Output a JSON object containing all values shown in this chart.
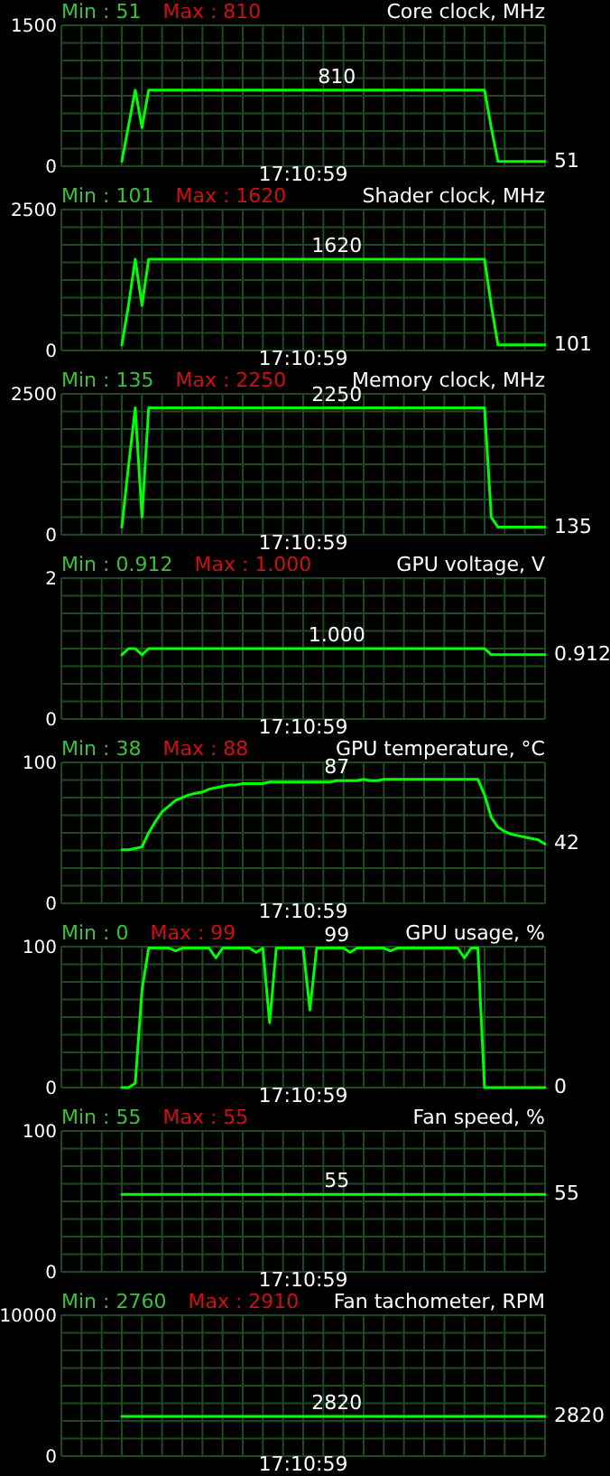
{
  "chart_data": [
    {
      "type": "line",
      "title": "Core clock, MHz",
      "xlabel": "17:10:59",
      "annotations": [
        "Min : 51",
        "Max : 810"
      ],
      "grid": true,
      "ylim": [
        0,
        1500
      ],
      "yticks": [
        0,
        {
          "value": 187.5,
          "label": null
        },
        {
          "value": 375,
          "label": null
        },
        {
          "value": 562.5,
          "label": null
        },
        {
          "value": 750,
          "label": null
        },
        {
          "value": 937.5,
          "label": null
        },
        {
          "value": 1125,
          "label": null
        },
        {
          "value": 1312.5,
          "label": null
        },
        1500
      ],
      "categories": [
        null,
        null,
        null,
        null,
        null,
        null,
        null,
        null,
        null,
        null,
        null,
        null,
        null,
        null,
        null,
        null,
        null,
        null,
        null,
        null,
        null,
        null,
        null,
        null,
        null,
        null,
        null,
        null,
        null,
        null,
        null,
        null,
        null,
        null,
        null,
        null,
        null,
        null,
        null,
        null,
        null,
        null,
        null,
        null,
        null,
        null,
        null,
        null,
        null,
        null,
        null,
        null,
        null,
        null,
        null,
        null,
        null,
        null,
        null,
        null,
        null,
        null,
        null,
        null,
        null,
        null,
        null,
        null,
        null,
        null,
        null,
        null,
        null
      ],
      "series": [
        {
          "color": "#00ff00",
          "values": [
            null,
            null,
            null,
            null,
            null,
            null,
            null,
            null,
            null,
            51,
            430,
            810,
            410,
            810,
            810,
            810,
            810,
            810,
            810,
            810,
            810,
            810,
            810,
            810,
            810,
            810,
            810,
            810,
            810,
            810,
            810,
            810,
            810,
            810,
            810,
            810,
            810,
            810,
            810,
            810,
            810,
            810,
            810,
            810,
            810,
            810,
            810,
            810,
            810,
            810,
            810,
            810,
            810,
            810,
            810,
            810,
            810,
            810,
            810,
            810,
            810,
            810,
            810,
            810,
            410,
            51,
            51,
            51,
            51,
            51,
            51,
            51,
            51
          ],
          "value_labels": [
            null,
            null,
            null,
            null,
            null,
            null,
            null,
            null,
            null,
            null,
            null,
            null,
            null,
            null,
            null,
            null,
            null,
            null,
            null,
            null,
            null,
            null,
            null,
            null,
            null,
            null,
            null,
            null,
            null,
            null,
            null,
            null,
            null,
            null,
            null,
            null,
            null,
            null,
            null,
            null,
            null,
            "810",
            null,
            null,
            null,
            null,
            null,
            null,
            null,
            null,
            null,
            null,
            null,
            null,
            null,
            null,
            null,
            null,
            null,
            null,
            null,
            null,
            null,
            null,
            null,
            null,
            null,
            null,
            null,
            null,
            null,
            null,
            "51"
          ]
        }
      ]
    },
    {
      "type": "line",
      "title": "Shader clock, MHz",
      "xlabel": "17:10:59",
      "annotations": [
        "Min : 101",
        "Max : 1620"
      ],
      "grid": true,
      "ylim": [
        0,
        2500
      ],
      "yticks": [
        0,
        {
          "value": 312.5,
          "label": null
        },
        {
          "value": 625,
          "label": null
        },
        {
          "value": 937.5,
          "label": null
        },
        {
          "value": 1250,
          "label": null
        },
        {
          "value": 1562.5,
          "label": null
        },
        {
          "value": 1875,
          "label": null
        },
        {
          "value": 2187.5,
          "label": null
        },
        2500
      ],
      "categories": [
        null,
        null,
        null,
        null,
        null,
        null,
        null,
        null,
        null,
        null,
        null,
        null,
        null,
        null,
        null,
        null,
        null,
        null,
        null,
        null,
        null,
        null,
        null,
        null,
        null,
        null,
        null,
        null,
        null,
        null,
        null,
        null,
        null,
        null,
        null,
        null,
        null,
        null,
        null,
        null,
        null,
        null,
        null,
        null,
        null,
        null,
        null,
        null,
        null,
        null,
        null,
        null,
        null,
        null,
        null,
        null,
        null,
        null,
        null,
        null,
        null,
        null,
        null,
        null,
        null,
        null,
        null,
        null,
        null,
        null,
        null,
        null,
        null
      ],
      "series": [
        {
          "color": "#00ff00",
          "values": [
            null,
            null,
            null,
            null,
            null,
            null,
            null,
            null,
            null,
            101,
            800,
            1620,
            800,
            1620,
            1620,
            1620,
            1620,
            1620,
            1620,
            1620,
            1620,
            1620,
            1620,
            1620,
            1620,
            1620,
            1620,
            1620,
            1620,
            1620,
            1620,
            1620,
            1620,
            1620,
            1620,
            1620,
            1620,
            1620,
            1620,
            1620,
            1620,
            1620,
            1620,
            1620,
            1620,
            1620,
            1620,
            1620,
            1620,
            1620,
            1620,
            1620,
            1620,
            1620,
            1620,
            1620,
            1620,
            1620,
            1620,
            1620,
            1620,
            1620,
            1620,
            1620,
            800,
            101,
            101,
            101,
            101,
            101,
            101,
            101,
            101
          ],
          "value_labels": [
            null,
            null,
            null,
            null,
            null,
            null,
            null,
            null,
            null,
            null,
            null,
            null,
            null,
            null,
            null,
            null,
            null,
            null,
            null,
            null,
            null,
            null,
            null,
            null,
            null,
            null,
            null,
            null,
            null,
            null,
            null,
            null,
            null,
            null,
            null,
            null,
            null,
            null,
            null,
            null,
            null,
            "1620",
            null,
            null,
            null,
            null,
            null,
            null,
            null,
            null,
            null,
            null,
            null,
            null,
            null,
            null,
            null,
            null,
            null,
            null,
            null,
            null,
            null,
            null,
            null,
            null,
            null,
            null,
            null,
            null,
            null,
            null,
            "101"
          ]
        }
      ]
    },
    {
      "type": "line",
      "title": "Memory clock, MHz",
      "xlabel": "17:10:59",
      "annotations": [
        "Min : 135",
        "Max : 2250"
      ],
      "grid": true,
      "ylim": [
        0,
        2500
      ],
      "yticks": [
        0,
        {
          "value": 312.5,
          "label": null
        },
        {
          "value": 625,
          "label": null
        },
        {
          "value": 937.5,
          "label": null
        },
        {
          "value": 1250,
          "label": null
        },
        {
          "value": 1562.5,
          "label": null
        },
        {
          "value": 1875,
          "label": null
        },
        {
          "value": 2187.5,
          "label": null
        },
        2500
      ],
      "categories": [
        null,
        null,
        null,
        null,
        null,
        null,
        null,
        null,
        null,
        null,
        null,
        null,
        null,
        null,
        null,
        null,
        null,
        null,
        null,
        null,
        null,
        null,
        null,
        null,
        null,
        null,
        null,
        null,
        null,
        null,
        null,
        null,
        null,
        null,
        null,
        null,
        null,
        null,
        null,
        null,
        null,
        null,
        null,
        null,
        null,
        null,
        null,
        null,
        null,
        null,
        null,
        null,
        null,
        null,
        null,
        null,
        null,
        null,
        null,
        null,
        null,
        null,
        null,
        null,
        null,
        null,
        null,
        null,
        null,
        null,
        null,
        null,
        null
      ],
      "series": [
        {
          "color": "#00ff00",
          "values": [
            null,
            null,
            null,
            null,
            null,
            null,
            null,
            null,
            null,
            135,
            1220,
            2250,
            310,
            2250,
            2250,
            2250,
            2250,
            2250,
            2250,
            2250,
            2250,
            2250,
            2250,
            2250,
            2250,
            2250,
            2250,
            2250,
            2250,
            2250,
            2250,
            2250,
            2250,
            2250,
            2250,
            2250,
            2250,
            2250,
            2250,
            2250,
            2250,
            2250,
            2250,
            2250,
            2250,
            2250,
            2250,
            2250,
            2250,
            2250,
            2250,
            2250,
            2250,
            2250,
            2250,
            2250,
            2250,
            2250,
            2250,
            2250,
            2250,
            2250,
            2250,
            2250,
            310,
            135,
            135,
            135,
            135,
            135,
            135,
            135,
            135
          ],
          "value_labels": [
            null,
            null,
            null,
            null,
            null,
            null,
            null,
            null,
            null,
            null,
            null,
            null,
            null,
            null,
            null,
            null,
            null,
            null,
            null,
            null,
            null,
            null,
            null,
            null,
            null,
            null,
            null,
            null,
            null,
            null,
            null,
            null,
            null,
            null,
            null,
            null,
            null,
            null,
            null,
            null,
            null,
            "2250",
            null,
            null,
            null,
            null,
            null,
            null,
            null,
            null,
            null,
            null,
            null,
            null,
            null,
            null,
            null,
            null,
            null,
            null,
            null,
            null,
            null,
            null,
            null,
            null,
            null,
            null,
            null,
            null,
            null,
            null,
            "135"
          ]
        }
      ]
    },
    {
      "type": "line",
      "title": "GPU voltage, V",
      "xlabel": "17:10:59",
      "annotations": [
        "Min : 0.912",
        "Max : 1.000"
      ],
      "grid": true,
      "ylim": [
        0,
        2
      ],
      "yticks": [
        0,
        {
          "value": 0.25,
          "label": null
        },
        {
          "value": 0.5,
          "label": null
        },
        {
          "value": 0.75,
          "label": null
        },
        {
          "value": 1,
          "label": null
        },
        {
          "value": 1.25,
          "label": null
        },
        {
          "value": 1.5,
          "label": null
        },
        {
          "value": 1.75,
          "label": null
        },
        2
      ],
      "categories": [
        null,
        null,
        null,
        null,
        null,
        null,
        null,
        null,
        null,
        null,
        null,
        null,
        null,
        null,
        null,
        null,
        null,
        null,
        null,
        null,
        null,
        null,
        null,
        null,
        null,
        null,
        null,
        null,
        null,
        null,
        null,
        null,
        null,
        null,
        null,
        null,
        null,
        null,
        null,
        null,
        null,
        null,
        null,
        null,
        null,
        null,
        null,
        null,
        null,
        null,
        null,
        null,
        null,
        null,
        null,
        null,
        null,
        null,
        null,
        null,
        null,
        null,
        null,
        null,
        null,
        null,
        null,
        null,
        null,
        null,
        null,
        null,
        null
      ],
      "series": [
        {
          "color": "#00ff00",
          "values": [
            null,
            null,
            null,
            null,
            null,
            null,
            null,
            null,
            null,
            0.912,
            1,
            1,
            0.912,
            1,
            1,
            1,
            1,
            1,
            1,
            1,
            1,
            1,
            1,
            1,
            1,
            1,
            1,
            1,
            1,
            1,
            1,
            1,
            1,
            1,
            1,
            1,
            1,
            1,
            1,
            1,
            1,
            1,
            1,
            1,
            1,
            1,
            1,
            1,
            1,
            1,
            1,
            1,
            1,
            1,
            1,
            1,
            1,
            1,
            1,
            1,
            1,
            1,
            1,
            1,
            0.912,
            0.912,
            0.912,
            0.912,
            0.912,
            0.912,
            0.912,
            0.912,
            0.912
          ],
          "value_labels": [
            null,
            null,
            null,
            null,
            null,
            null,
            null,
            null,
            null,
            null,
            null,
            null,
            null,
            null,
            null,
            null,
            null,
            null,
            null,
            null,
            null,
            null,
            null,
            null,
            null,
            null,
            null,
            null,
            null,
            null,
            null,
            null,
            null,
            null,
            null,
            null,
            null,
            null,
            null,
            null,
            null,
            "1.000",
            null,
            null,
            null,
            null,
            null,
            null,
            null,
            null,
            null,
            null,
            null,
            null,
            null,
            null,
            null,
            null,
            null,
            null,
            null,
            null,
            null,
            null,
            null,
            null,
            null,
            null,
            null,
            null,
            null,
            null,
            "0.912"
          ]
        }
      ]
    },
    {
      "type": "line",
      "title": "GPU temperature, °C",
      "xlabel": "17:10:59",
      "annotations": [
        "Min : 38",
        "Max : 88"
      ],
      "grid": true,
      "ylim": [
        0,
        100
      ],
      "yticks": [
        0,
        {
          "value": 12.5,
          "label": null
        },
        {
          "value": 25,
          "label": null
        },
        {
          "value": 37.5,
          "label": null
        },
        {
          "value": 50,
          "label": null
        },
        {
          "value": 62.5,
          "label": null
        },
        {
          "value": 75,
          "label": null
        },
        {
          "value": 87.5,
          "label": null
        },
        100
      ],
      "categories": [
        null,
        null,
        null,
        null,
        null,
        null,
        null,
        null,
        null,
        null,
        null,
        null,
        null,
        null,
        null,
        null,
        null,
        null,
        null,
        null,
        null,
        null,
        null,
        null,
        null,
        null,
        null,
        null,
        null,
        null,
        null,
        null,
        null,
        null,
        null,
        null,
        null,
        null,
        null,
        null,
        null,
        null,
        null,
        null,
        null,
        null,
        null,
        null,
        null,
        null,
        null,
        null,
        null,
        null,
        null,
        null,
        null,
        null,
        null,
        null,
        null,
        null,
        null,
        null,
        null,
        null,
        null,
        null,
        null,
        null,
        null,
        null,
        null
      ],
      "series": [
        {
          "color": "#00ff00",
          "values": [
            null,
            null,
            null,
            null,
            null,
            null,
            null,
            null,
            null,
            38,
            38,
            39,
            40,
            50,
            58,
            65,
            69,
            73,
            75,
            77,
            78,
            79,
            81,
            82,
            83,
            84,
            84,
            85,
            85,
            85,
            85,
            86,
            86,
            86,
            86,
            86,
            86,
            86,
            86,
            86,
            86,
            87,
            87,
            87,
            87,
            88,
            87,
            87,
            88,
            88,
            88,
            88,
            88,
            88,
            88,
            88,
            88,
            88,
            88,
            88,
            88,
            88,
            88,
            77,
            61,
            54,
            51,
            49,
            48,
            47,
            46,
            45,
            42
          ],
          "value_labels": [
            null,
            null,
            null,
            null,
            null,
            null,
            null,
            null,
            null,
            null,
            null,
            null,
            null,
            null,
            null,
            null,
            null,
            null,
            null,
            null,
            null,
            null,
            null,
            null,
            null,
            null,
            null,
            null,
            null,
            null,
            null,
            null,
            null,
            null,
            null,
            null,
            null,
            null,
            null,
            null,
            null,
            "87",
            null,
            null,
            null,
            null,
            null,
            null,
            null,
            null,
            null,
            null,
            null,
            null,
            null,
            null,
            null,
            null,
            null,
            null,
            null,
            null,
            null,
            null,
            null,
            null,
            null,
            null,
            null,
            null,
            null,
            null,
            "42"
          ]
        }
      ]
    },
    {
      "type": "line",
      "title": "GPU usage, %",
      "xlabel": "17:10:59",
      "annotations": [
        "Min : 0",
        "Max : 99"
      ],
      "grid": true,
      "ylim": [
        0,
        100
      ],
      "yticks": [
        0,
        {
          "value": 12.5,
          "label": null
        },
        {
          "value": 25,
          "label": null
        },
        {
          "value": 37.5,
          "label": null
        },
        {
          "value": 50,
          "label": null
        },
        {
          "value": 62.5,
          "label": null
        },
        {
          "value": 75,
          "label": null
        },
        {
          "value": 87.5,
          "label": null
        },
        100
      ],
      "categories": [
        null,
        null,
        null,
        null,
        null,
        null,
        null,
        null,
        null,
        null,
        null,
        null,
        null,
        null,
        null,
        null,
        null,
        null,
        null,
        null,
        null,
        null,
        null,
        null,
        null,
        null,
        null,
        null,
        null,
        null,
        null,
        null,
        null,
        null,
        null,
        null,
        null,
        null,
        null,
        null,
        null,
        null,
        null,
        null,
        null,
        null,
        null,
        null,
        null,
        null,
        null,
        null,
        null,
        null,
        null,
        null,
        null,
        null,
        null,
        null,
        null,
        null,
        null,
        null,
        null,
        null,
        null,
        null,
        null,
        null,
        null,
        null,
        null
      ],
      "series": [
        {
          "color": "#00ff00",
          "values": [
            null,
            null,
            null,
            null,
            null,
            null,
            null,
            null,
            null,
            0,
            0,
            3,
            69,
            99,
            99,
            99,
            99,
            97,
            99,
            99,
            99,
            99,
            99,
            92,
            99,
            99,
            99,
            99,
            99,
            96,
            99,
            46,
            99,
            99,
            99,
            99,
            99,
            55,
            99,
            99,
            99,
            99,
            99,
            96,
            99,
            99,
            99,
            99,
            99,
            97,
            99,
            99,
            99,
            99,
            99,
            99,
            99,
            99,
            99,
            99,
            92,
            99,
            99,
            0,
            0,
            0,
            0,
            0,
            0,
            0,
            0,
            0,
            0
          ],
          "value_labels": [
            null,
            null,
            null,
            null,
            null,
            null,
            null,
            null,
            null,
            null,
            null,
            null,
            null,
            null,
            null,
            null,
            null,
            null,
            null,
            null,
            null,
            null,
            null,
            null,
            null,
            null,
            null,
            null,
            null,
            null,
            null,
            null,
            null,
            null,
            null,
            null,
            null,
            null,
            null,
            null,
            null,
            "99",
            null,
            null,
            null,
            null,
            null,
            null,
            null,
            null,
            null,
            null,
            null,
            null,
            null,
            null,
            null,
            null,
            null,
            null,
            null,
            null,
            null,
            null,
            null,
            null,
            null,
            null,
            null,
            null,
            null,
            null,
            "0"
          ]
        }
      ]
    },
    {
      "type": "line",
      "title": "Fan speed, %",
      "xlabel": "17:10:59",
      "annotations": [
        "Min : 55",
        "Max : 55"
      ],
      "grid": true,
      "ylim": [
        0,
        100
      ],
      "yticks": [
        0,
        {
          "value": 12.5,
          "label": null
        },
        {
          "value": 25,
          "label": null
        },
        {
          "value": 37.5,
          "label": null
        },
        {
          "value": 50,
          "label": null
        },
        {
          "value": 62.5,
          "label": null
        },
        {
          "value": 75,
          "label": null
        },
        {
          "value": 87.5,
          "label": null
        },
        100
      ],
      "categories": [
        null,
        null,
        null,
        null,
        null,
        null,
        null,
        null,
        null,
        null,
        null,
        null,
        null,
        null,
        null,
        null,
        null,
        null,
        null,
        null,
        null,
        null,
        null,
        null,
        null,
        null,
        null,
        null,
        null,
        null,
        null,
        null,
        null,
        null,
        null,
        null,
        null,
        null,
        null,
        null,
        null,
        null,
        null,
        null,
        null,
        null,
        null,
        null,
        null,
        null,
        null,
        null,
        null,
        null,
        null,
        null,
        null,
        null,
        null,
        null,
        null,
        null,
        null,
        null,
        null,
        null,
        null,
        null,
        null,
        null,
        null,
        null,
        null
      ],
      "series": [
        {
          "color": "#00ff00",
          "values": [
            null,
            null,
            null,
            null,
            null,
            null,
            null,
            null,
            null,
            55,
            55,
            55,
            55,
            55,
            55,
            55,
            55,
            55,
            55,
            55,
            55,
            55,
            55,
            55,
            55,
            55,
            55,
            55,
            55,
            55,
            55,
            55,
            55,
            55,
            55,
            55,
            55,
            55,
            55,
            55,
            55,
            55,
            55,
            55,
            55,
            55,
            55,
            55,
            55,
            55,
            55,
            55,
            55,
            55,
            55,
            55,
            55,
            55,
            55,
            55,
            55,
            55,
            55,
            55,
            55,
            55,
            55,
            55,
            55,
            55,
            55,
            55,
            55
          ],
          "value_labels": [
            null,
            null,
            null,
            null,
            null,
            null,
            null,
            null,
            null,
            null,
            null,
            null,
            null,
            null,
            null,
            null,
            null,
            null,
            null,
            null,
            null,
            null,
            null,
            null,
            null,
            null,
            null,
            null,
            null,
            null,
            null,
            null,
            null,
            null,
            null,
            null,
            null,
            null,
            null,
            null,
            null,
            "55",
            null,
            null,
            null,
            null,
            null,
            null,
            null,
            null,
            null,
            null,
            null,
            null,
            null,
            null,
            null,
            null,
            null,
            null,
            null,
            null,
            null,
            null,
            null,
            null,
            null,
            null,
            null,
            null,
            null,
            null,
            "55"
          ]
        }
      ]
    },
    {
      "type": "line",
      "title": "Fan tachometer, RPM",
      "xlabel": "17:10:59",
      "annotations": [
        "Min : 2760",
        "Max : 2910"
      ],
      "grid": true,
      "ylim": [
        0,
        10000
      ],
      "yticks": [
        0,
        {
          "value": 1250,
          "label": null
        },
        {
          "value": 2500,
          "label": null
        },
        {
          "value": 3750,
          "label": null
        },
        {
          "value": 5000,
          "label": null
        },
        {
          "value": 6250,
          "label": null
        },
        {
          "value": 7500,
          "label": null
        },
        {
          "value": 8750,
          "label": null
        },
        10000
      ],
      "categories": [
        null,
        null,
        null,
        null,
        null,
        null,
        null,
        null,
        null,
        null,
        null,
        null,
        null,
        null,
        null,
        null,
        null,
        null,
        null,
        null,
        null,
        null,
        null,
        null,
        null,
        null,
        null,
        null,
        null,
        null,
        null,
        null,
        null,
        null,
        null,
        null,
        null,
        null,
        null,
        null,
        null,
        null,
        null,
        null,
        null,
        null,
        null,
        null,
        null,
        null,
        null,
        null,
        null,
        null,
        null,
        null,
        null,
        null,
        null,
        null,
        null,
        null,
        null,
        null,
        null,
        null,
        null,
        null,
        null,
        null,
        null,
        null,
        null
      ],
      "series": [
        {
          "color": "#00ff00",
          "values": [
            null,
            null,
            null,
            null,
            null,
            null,
            null,
            null,
            null,
            2820,
            2820,
            2820,
            2820,
            2820,
            2820,
            2820,
            2820,
            2820,
            2820,
            2820,
            2820,
            2820,
            2820,
            2820,
            2820,
            2820,
            2820,
            2820,
            2820,
            2820,
            2820,
            2820,
            2820,
            2820,
            2820,
            2820,
            2820,
            2820,
            2820,
            2820,
            2820,
            2820,
            2820,
            2820,
            2820,
            2820,
            2820,
            2820,
            2820,
            2820,
            2820,
            2820,
            2820,
            2820,
            2820,
            2820,
            2820,
            2820,
            2820,
            2820,
            2820,
            2820,
            2820,
            2820,
            2820,
            2820,
            2820,
            2820,
            2820,
            2820,
            2820,
            2820,
            2820
          ],
          "value_labels": [
            null,
            null,
            null,
            null,
            null,
            null,
            null,
            null,
            null,
            null,
            null,
            null,
            null,
            null,
            null,
            null,
            null,
            null,
            null,
            null,
            null,
            null,
            null,
            null,
            null,
            null,
            null,
            null,
            null,
            null,
            null,
            null,
            null,
            null,
            null,
            null,
            null,
            null,
            null,
            null,
            null,
            "2820",
            null,
            null,
            null,
            null,
            null,
            null,
            null,
            null,
            null,
            null,
            null,
            null,
            null,
            null,
            null,
            null,
            null,
            null,
            null,
            null,
            null,
            null,
            null,
            null,
            null,
            null,
            null,
            null,
            null,
            null,
            "2820"
          ]
        }
      ]
    }
  ]
}
